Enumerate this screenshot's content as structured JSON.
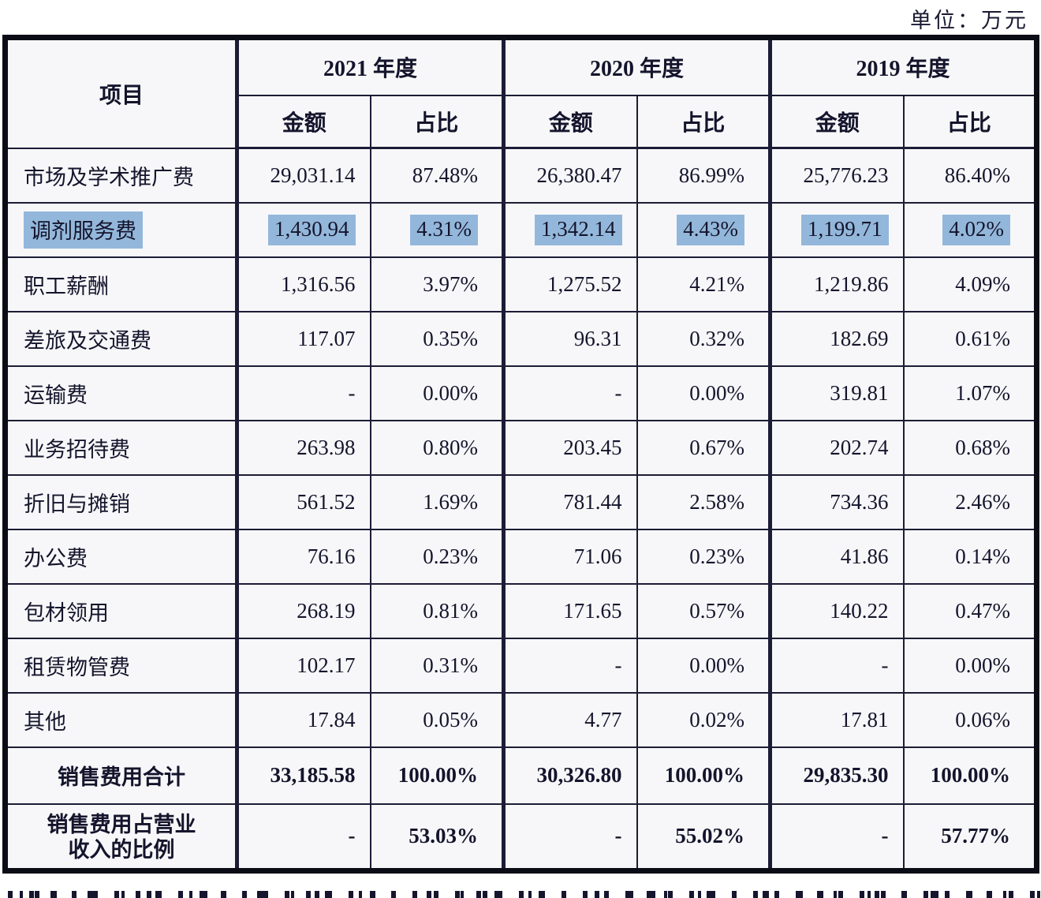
{
  "unit_label": "单位：万元",
  "colors": {
    "highlight": "#93b7da",
    "text": "#14142c",
    "grid_line": "#1c1c36"
  },
  "table": {
    "header": {
      "item": "项目",
      "year_groups": [
        "2021 年度",
        "2020 年度",
        "2019 年度"
      ],
      "amount_label": "金额",
      "ratio_label": "占比"
    },
    "rows": [
      {
        "label": "市场及学术推广费",
        "highlighted": false,
        "cells": [
          "29,031.14",
          "87.48%",
          "26,380.47",
          "86.99%",
          "25,776.23",
          "86.40%"
        ]
      },
      {
        "label": "调剂服务费",
        "highlighted": true,
        "cells": [
          "1,430.94",
          "4.31%",
          "1,342.14",
          "4.43%",
          "1,199.71",
          "4.02%"
        ]
      },
      {
        "label": "职工薪酬",
        "highlighted": false,
        "cells": [
          "1,316.56",
          "3.97%",
          "1,275.52",
          "4.21%",
          "1,219.86",
          "4.09%"
        ]
      },
      {
        "label": "差旅及交通费",
        "highlighted": false,
        "cells": [
          "117.07",
          "0.35%",
          "96.31",
          "0.32%",
          "182.69",
          "0.61%"
        ]
      },
      {
        "label": "运输费",
        "highlighted": false,
        "cells": [
          "-",
          "0.00%",
          "-",
          "0.00%",
          "319.81",
          "1.07%"
        ]
      },
      {
        "label": "业务招待费",
        "highlighted": false,
        "cells": [
          "263.98",
          "0.80%",
          "203.45",
          "0.67%",
          "202.74",
          "0.68%"
        ]
      },
      {
        "label": "折旧与摊销",
        "highlighted": false,
        "cells": [
          "561.52",
          "1.69%",
          "781.44",
          "2.58%",
          "734.36",
          "2.46%"
        ]
      },
      {
        "label": "办公费",
        "highlighted": false,
        "cells": [
          "76.16",
          "0.23%",
          "71.06",
          "0.23%",
          "41.86",
          "0.14%"
        ]
      },
      {
        "label": "包材领用",
        "highlighted": false,
        "cells": [
          "268.19",
          "0.81%",
          "171.65",
          "0.57%",
          "140.22",
          "0.47%"
        ]
      },
      {
        "label": "租赁物管费",
        "highlighted": false,
        "cells": [
          "102.17",
          "0.31%",
          "-",
          "0.00%",
          "-",
          "0.00%"
        ]
      },
      {
        "label": "其他",
        "highlighted": false,
        "cells": [
          "17.84",
          "0.05%",
          "4.77",
          "0.02%",
          "17.81",
          "0.06%"
        ]
      }
    ],
    "total_row": {
      "label": "销售费用合计",
      "cells": [
        "33,185.58",
        "100.00%",
        "30,326.80",
        "100.00%",
        "29,835.30",
        "100.00%"
      ]
    },
    "ratio_row": {
      "label_line1": "销售费用占营业",
      "label_line2": "收入的比例",
      "cells": [
        "-",
        "53.03%",
        "-",
        "55.02%",
        "-",
        "57.77%"
      ]
    }
  }
}
